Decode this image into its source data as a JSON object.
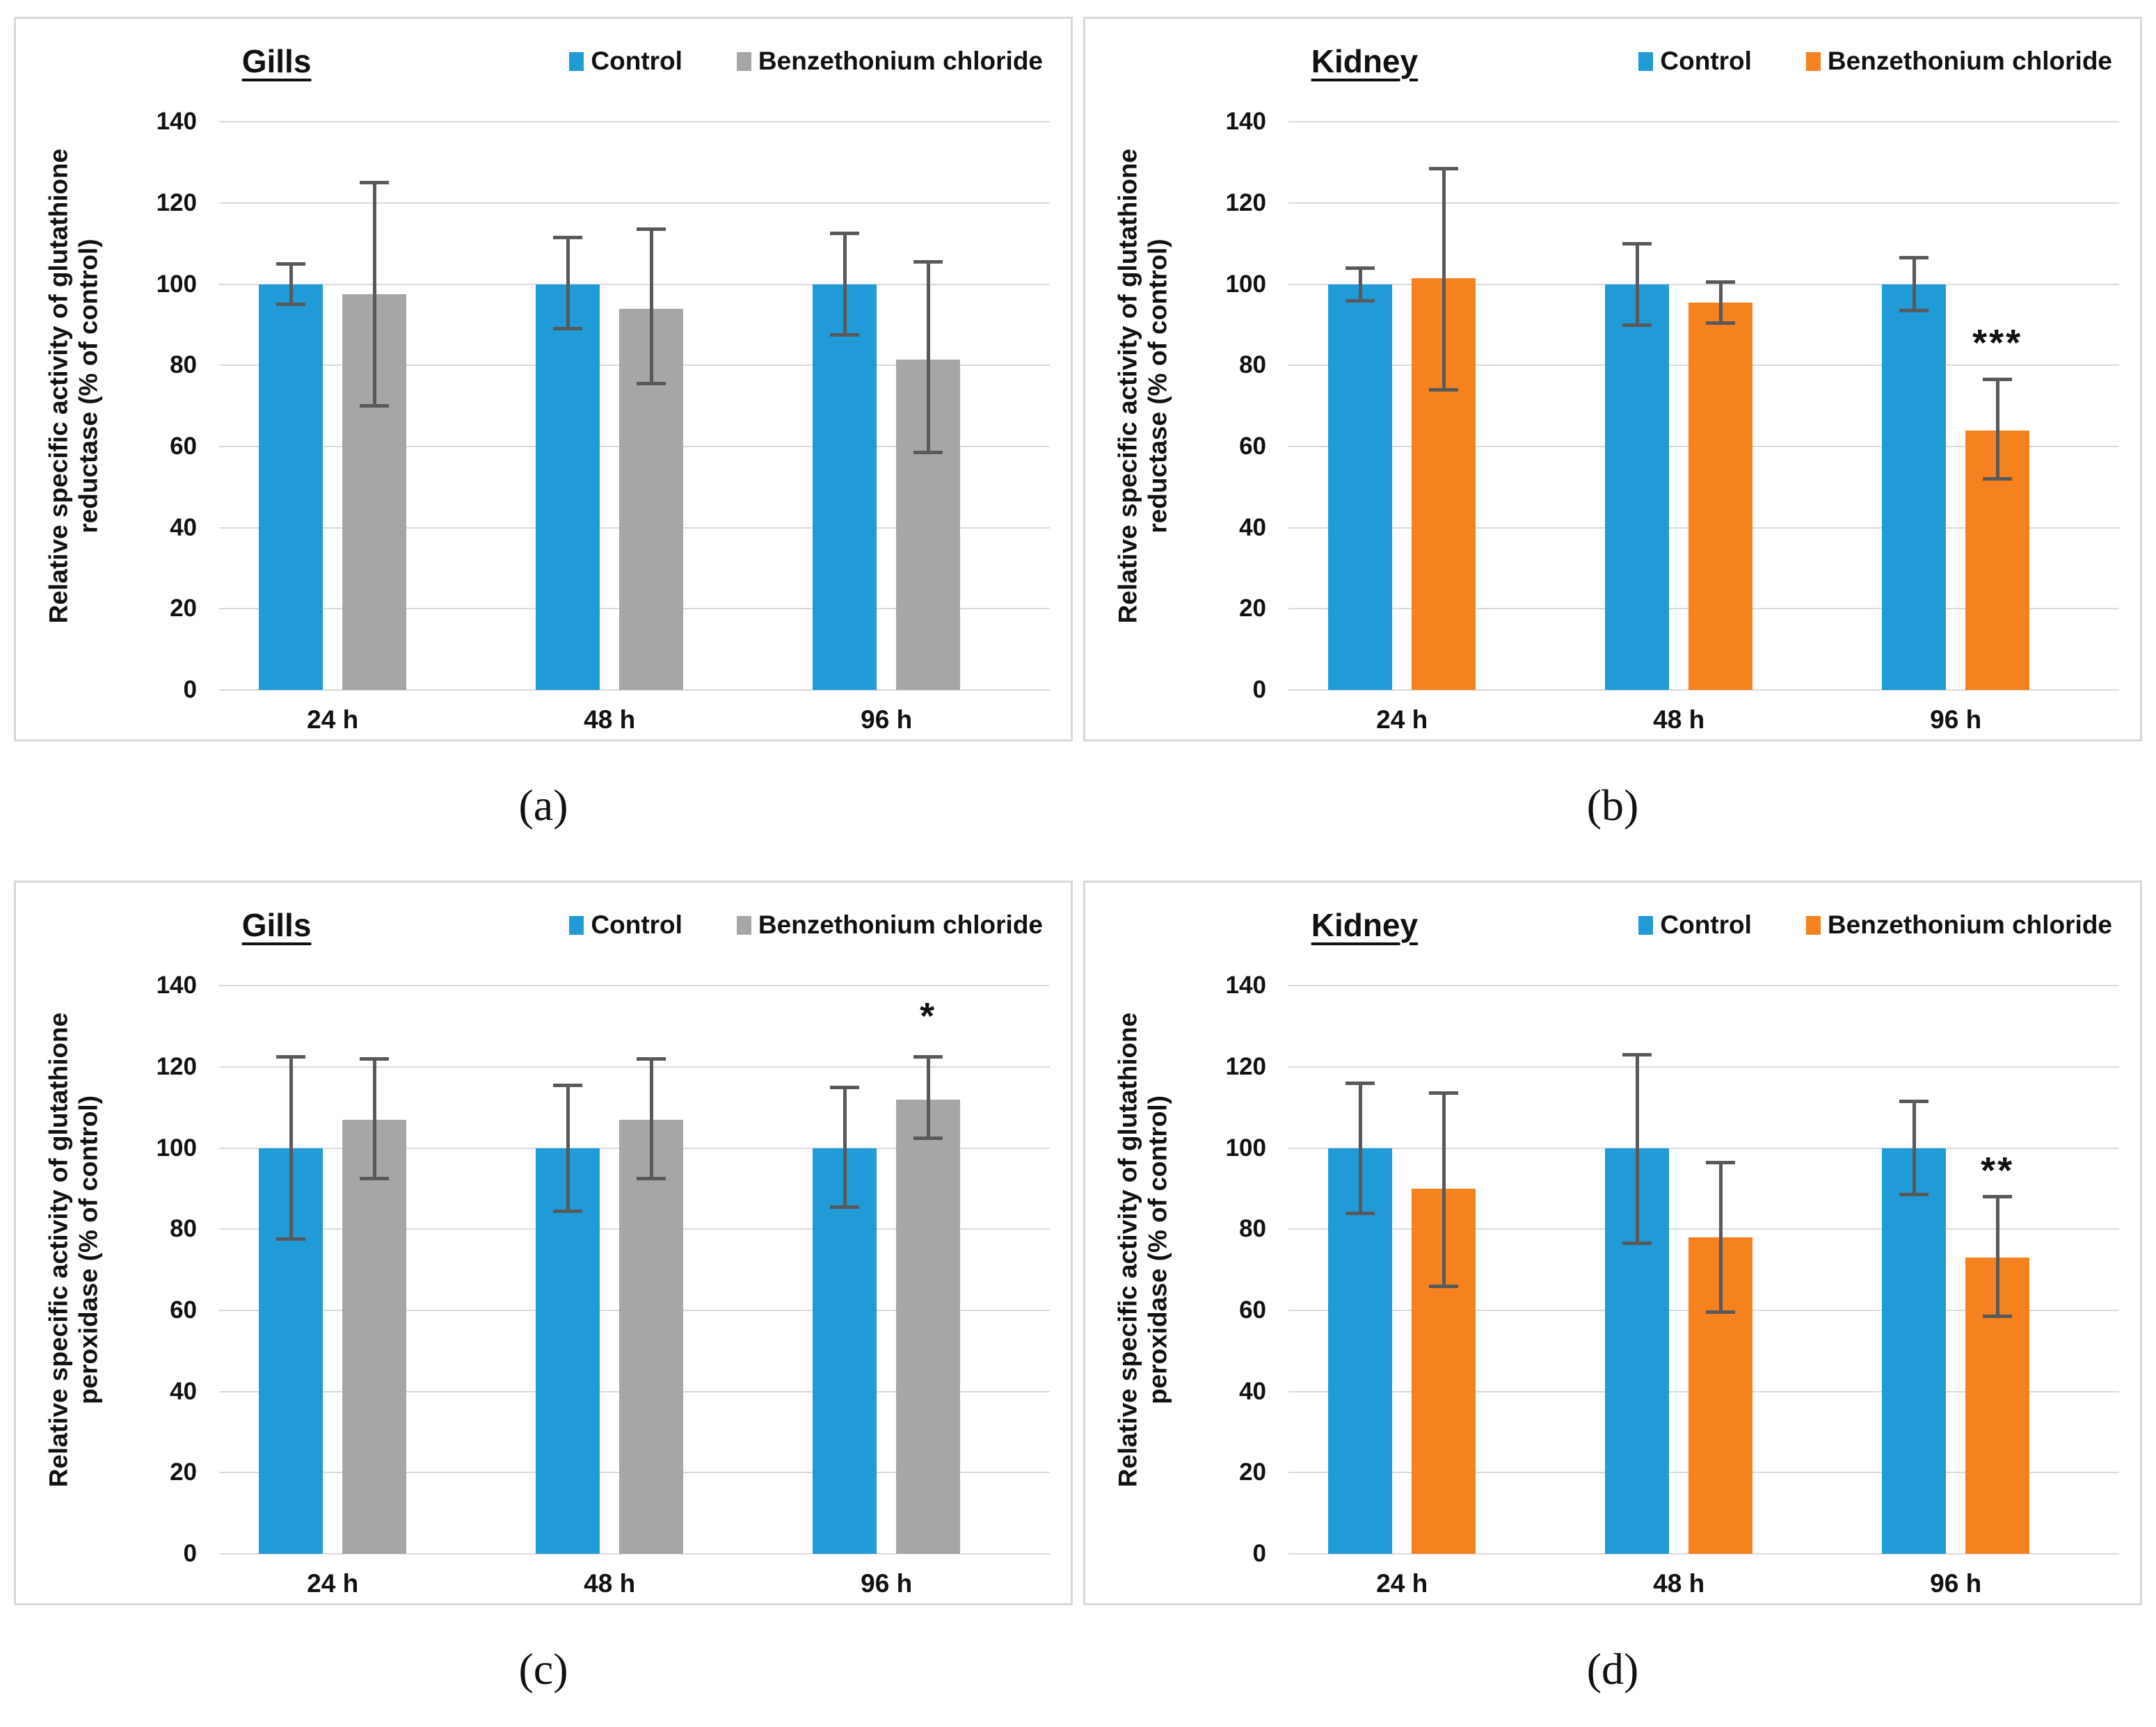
{
  "figure": {
    "background": "#ffffff"
  },
  "colors": {
    "control_blue": "#209BD8",
    "treatment_gray": "#A6A6A6",
    "treatment_orange": "#F5821F",
    "error_bar": "#58595B",
    "gridline": "#DADADA",
    "panel_border": "#D8D8D8",
    "text": "#111111"
  },
  "axis": {
    "ymax": 150,
    "yticks": [
      0,
      20,
      40,
      60,
      80,
      100,
      120,
      140
    ]
  },
  "captions": [
    "(a)",
    "(b)",
    "(c)",
    "(d)"
  ],
  "chart_data": [
    {
      "id": "a",
      "type": "bar",
      "title": "Gills",
      "ylabel_line1": "Relative specific activity of glutathione",
      "ylabel_line2": "reductase (% of control)",
      "categories": [
        "24 h",
        "48 h",
        "96 h"
      ],
      "ylim": [
        0,
        150
      ],
      "grid": true,
      "legend_position": "top-right",
      "series": [
        {
          "name": "Control",
          "color": "#209BD8",
          "values": [
            100,
            100,
            100
          ],
          "err_low": [
            95,
            89,
            87.5
          ],
          "err_high": [
            105,
            111.5,
            112.5
          ]
        },
        {
          "name": "Benzethonium chloride",
          "color": "#A6A6A6",
          "values": [
            97.5,
            94,
            81.5
          ],
          "err_low": [
            70,
            75.5,
            58.5
          ],
          "err_high": [
            125,
            113.5,
            105.5
          ]
        }
      ],
      "significance": []
    },
    {
      "id": "b",
      "type": "bar",
      "title": "Kidney",
      "ylabel_line1": "Relative specific activity of glutathione",
      "ylabel_line2": "reductase (% of control)",
      "categories": [
        "24 h",
        "48 h",
        "96 h"
      ],
      "ylim": [
        0,
        150
      ],
      "grid": true,
      "legend_position": "top-right",
      "series": [
        {
          "name": "Control",
          "color": "#209BD8",
          "values": [
            100,
            100,
            100
          ],
          "err_low": [
            96,
            90,
            93.5
          ],
          "err_high": [
            104,
            110,
            106.5
          ]
        },
        {
          "name": "Benzethonium chloride",
          "color": "#F5821F",
          "values": [
            101.5,
            95.5,
            64
          ],
          "err_low": [
            74,
            90.5,
            52
          ],
          "err_high": [
            128.5,
            100.5,
            76.5
          ]
        }
      ],
      "significance": [
        {
          "category_index": 2,
          "series_index": 1,
          "label": "***",
          "y": 85
        }
      ]
    },
    {
      "id": "c",
      "type": "bar",
      "title": "Gills",
      "ylabel_line1": "Relative specific activity of glutathione",
      "ylabel_line2": "peroxidase (% of control)",
      "categories": [
        "24 h",
        "48 h",
        "96 h"
      ],
      "ylim": [
        0,
        150
      ],
      "grid": true,
      "legend_position": "top-right",
      "series": [
        {
          "name": "Control",
          "color": "#209BD8",
          "values": [
            100,
            100,
            100
          ],
          "err_low": [
            77.5,
            84.5,
            85.5
          ],
          "err_high": [
            122.5,
            115.5,
            115
          ]
        },
        {
          "name": "Benzethonium chloride",
          "color": "#A6A6A6",
          "values": [
            107,
            107,
            112
          ],
          "err_low": [
            92.5,
            92.5,
            102.5
          ],
          "err_high": [
            122,
            122,
            122.5
          ]
        }
      ],
      "significance": [
        {
          "category_index": 2,
          "series_index": 1,
          "label": "*",
          "y": 132
        }
      ]
    },
    {
      "id": "d",
      "type": "bar",
      "title": "Kidney",
      "ylabel_line1": "Relative specific activity of glutathione",
      "ylabel_line2": "peroxidase (% of control)",
      "categories": [
        "24 h",
        "48 h",
        "96 h"
      ],
      "ylim": [
        0,
        150
      ],
      "grid": true,
      "legend_position": "top-right",
      "series": [
        {
          "name": "Control",
          "color": "#209BD8",
          "values": [
            100,
            100,
            100
          ],
          "err_low": [
            84,
            76.5,
            88.5
          ],
          "err_high": [
            116,
            123,
            111.5
          ]
        },
        {
          "name": "Benzethonium chloride",
          "color": "#F5821F",
          "values": [
            90,
            78,
            73
          ],
          "err_low": [
            66,
            59.5,
            58.5
          ],
          "err_high": [
            113.5,
            96.5,
            88
          ]
        }
      ],
      "significance": [
        {
          "category_index": 2,
          "series_index": 1,
          "label": "**",
          "y": 94
        }
      ]
    }
  ]
}
